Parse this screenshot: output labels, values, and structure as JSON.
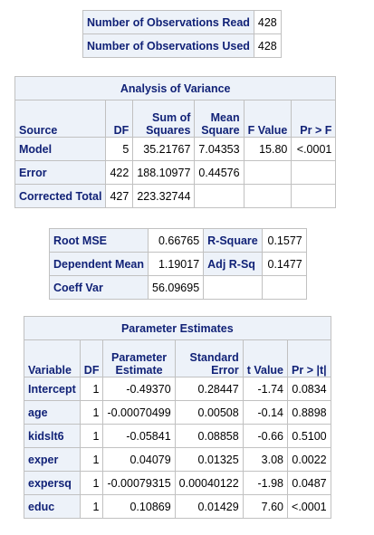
{
  "observations": {
    "rows": [
      {
        "label": "Number of Observations Read",
        "value": "428"
      },
      {
        "label": "Number of Observations Used",
        "value": "428"
      }
    ]
  },
  "anova": {
    "title": "Analysis of Variance",
    "headers": {
      "source": "Source",
      "df": "DF",
      "ss_line1": "Sum of",
      "ss_line2": "Squares",
      "ms_line1": "Mean",
      "ms_line2": "Square",
      "fvalue": "F Value",
      "prf": "Pr > F"
    },
    "rows": [
      {
        "source": "Model",
        "df": "5",
        "ss": "35.21767",
        "ms": "7.04353",
        "f": "15.80",
        "p": "<.0001"
      },
      {
        "source": "Error",
        "df": "422",
        "ss": "188.10977",
        "ms": "0.44576",
        "f": "",
        "p": ""
      },
      {
        "source": "Corrected Total",
        "df": "427",
        "ss": "223.32744",
        "ms": "",
        "f": "",
        "p": ""
      }
    ]
  },
  "fit": {
    "rows": [
      {
        "label1": "Root MSE",
        "value1": "0.66765",
        "label2": "R-Square",
        "value2": "0.1577"
      },
      {
        "label1": "Dependent Mean",
        "value1": "1.19017",
        "label2": "Adj R-Sq",
        "value2": "0.1477"
      },
      {
        "label1": "Coeff Var",
        "value1": "56.09695",
        "label2": "",
        "value2": ""
      }
    ]
  },
  "params": {
    "title": "Parameter Estimates",
    "headers": {
      "variable": "Variable",
      "df": "DF",
      "pe_line1": "Parameter",
      "pe_line2": "Estimate",
      "se_line1": "Standard",
      "se_line2": "Error",
      "tvalue": "t Value",
      "prt": "Pr > |t|"
    },
    "rows": [
      {
        "variable": "Intercept",
        "df": "1",
        "estimate": "-0.49370",
        "se": "0.28447",
        "t": "-1.74",
        "p": "0.0834"
      },
      {
        "variable": "age",
        "df": "1",
        "estimate": "-0.00070499",
        "se": "0.00508",
        "t": "-0.14",
        "p": "0.8898"
      },
      {
        "variable": "kidslt6",
        "df": "1",
        "estimate": "-0.05841",
        "se": "0.08858",
        "t": "-0.66",
        "p": "0.5100"
      },
      {
        "variable": "exper",
        "df": "1",
        "estimate": "0.04079",
        "se": "0.01325",
        "t": "3.08",
        "p": "0.0022"
      },
      {
        "variable": "expersq",
        "df": "1",
        "estimate": "-0.00079315",
        "se": "0.00040122",
        "t": "-1.98",
        "p": "0.0487"
      },
      {
        "variable": "educ",
        "df": "1",
        "estimate": "0.10869",
        "se": "0.01429",
        "t": "7.60",
        "p": "<.0001"
      }
    ]
  },
  "colors": {
    "header_bg": "#edf2f9",
    "header_text": "#112277",
    "border": "#c1c1c1"
  }
}
